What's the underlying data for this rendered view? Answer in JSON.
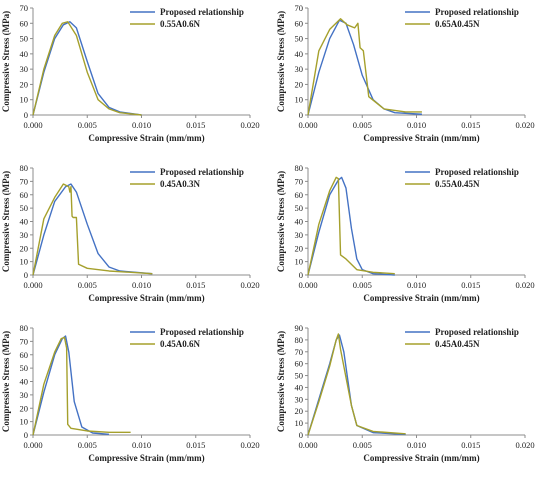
{
  "colors": {
    "proposed": "#4472C4",
    "experimental": "#A5A02C",
    "axis": "#8C8C8C",
    "text": "#222222"
  },
  "chart_data": [
    {
      "type": "line",
      "xlabel": "Compressive Strain (mm/mm)",
      "ylabel": "Compressive Stress (MPa)",
      "xlim": [
        0,
        0.02
      ],
      "ylim": [
        0,
        70
      ],
      "xticks": [
        "0.000",
        "0.005",
        "0.010",
        "0.015",
        "0.020"
      ],
      "yticks": [
        "0",
        "10",
        "20",
        "30",
        "40",
        "50",
        "60",
        "70"
      ],
      "legend_position": "top-right",
      "grid": false,
      "series": [
        {
          "name": "Proposed relationship",
          "color": "#4472C4",
          "x": [
            0,
            0.001,
            0.002,
            0.0028,
            0.0034,
            0.004,
            0.005,
            0.006,
            0.007,
            0.008,
            0.01
          ],
          "y": [
            0,
            28,
            50,
            59,
            61,
            57,
            35,
            14,
            5,
            2,
            0
          ]
        },
        {
          "name": "0.55A0.6N",
          "color": "#A5A02C",
          "x": [
            0,
            0.001,
            0.002,
            0.0027,
            0.0032,
            0.004,
            0.005,
            0.006,
            0.007,
            0.008,
            0.01
          ],
          "y": [
            0,
            30,
            52,
            60,
            61,
            52,
            28,
            10,
            4,
            1.5,
            0
          ]
        }
      ]
    },
    {
      "type": "line",
      "xlabel": "Compressive Strain (mm/mm)",
      "ylabel": "Compressive Stress (MPa)",
      "xlim": [
        0,
        0.02
      ],
      "ylim": [
        0,
        70
      ],
      "xticks": [
        "0.000",
        "0.005",
        "0.010",
        "0.015",
        "0.020"
      ],
      "yticks": [
        "0",
        "10",
        "20",
        "30",
        "40",
        "50",
        "60",
        "70"
      ],
      "legend_position": "top-right",
      "grid": false,
      "series": [
        {
          "name": "Proposed relationship",
          "color": "#4472C4",
          "x": [
            0,
            0.001,
            0.002,
            0.0029,
            0.0035,
            0.0042,
            0.005,
            0.006,
            0.007,
            0.008,
            0.0105
          ],
          "y": [
            0,
            28,
            50,
            62,
            60,
            46,
            26,
            10,
            4,
            1.5,
            0.5
          ]
        },
        {
          "name": "0.65A0.45N",
          "color": "#A5A02C",
          "x": [
            0,
            0.001,
            0.002,
            0.003,
            0.0036,
            0.0043,
            0.0046,
            0.0048,
            0.0051,
            0.0056,
            0.007,
            0.009,
            0.0105
          ],
          "y": [
            0,
            42,
            56,
            63,
            59,
            57,
            60,
            44,
            42,
            12,
            4,
            2,
            2
          ]
        }
      ]
    },
    {
      "type": "line",
      "xlabel": "Compressive Strain (mm/mm)",
      "ylabel": "Compressive Stress (MPa)",
      "xlim": [
        0,
        0.02
      ],
      "ylim": [
        0,
        80
      ],
      "xticks": [
        "0.000",
        "0.005",
        "0.010",
        "0.015",
        "0.020"
      ],
      "yticks": [
        "0",
        "10",
        "20",
        "30",
        "40",
        "50",
        "60",
        "70",
        "80"
      ],
      "legend_position": "top-right",
      "grid": false,
      "series": [
        {
          "name": "Proposed relationship",
          "color": "#4472C4",
          "x": [
            0,
            0.001,
            0.002,
            0.003,
            0.0035,
            0.004,
            0.005,
            0.006,
            0.007,
            0.008,
            0.011
          ],
          "y": [
            0,
            30,
            55,
            66,
            68,
            62,
            38,
            16,
            6,
            3,
            1
          ]
        },
        {
          "name": "0.45A0.3N",
          "color": "#A5A02C",
          "x": [
            0,
            0.001,
            0.002,
            0.0028,
            0.0033,
            0.0034,
            0.0035,
            0.0036,
            0.0037,
            0.004,
            0.0042,
            0.005,
            0.007,
            0.009,
            0.011
          ],
          "y": [
            0,
            42,
            58,
            68,
            66,
            62,
            66,
            44,
            43,
            43,
            8,
            5,
            3,
            2,
            1
          ]
        }
      ]
    },
    {
      "type": "line",
      "xlabel": "Compressive Strain (mm/mm)",
      "ylabel": "Compressive Stress (MPa)",
      "xlim": [
        0,
        0.02
      ],
      "ylim": [
        0,
        80
      ],
      "xticks": [
        "0.000",
        "0.005",
        "0.010",
        "0.015",
        "0.020"
      ],
      "yticks": [
        "0",
        "10",
        "20",
        "30",
        "40",
        "50",
        "60",
        "70",
        "80"
      ],
      "legend_position": "top-right",
      "grid": false,
      "series": [
        {
          "name": "Proposed relationship",
          "color": "#4472C4",
          "x": [
            0,
            0.001,
            0.002,
            0.0028,
            0.0031,
            0.0035,
            0.004,
            0.0045,
            0.005,
            0.006,
            0.008
          ],
          "y": [
            0,
            32,
            60,
            71,
            73,
            65,
            35,
            12,
            4,
            1,
            0
          ]
        },
        {
          "name": "0.55A0.45N",
          "color": "#A5A02C",
          "x": [
            0,
            0.001,
            0.002,
            0.0026,
            0.0028,
            0.003,
            0.0035,
            0.0045,
            0.006,
            0.008
          ],
          "y": [
            0,
            38,
            63,
            73,
            72,
            15,
            12,
            4,
            2,
            1
          ]
        }
      ]
    },
    {
      "type": "line",
      "xlabel": "Compressive Strain (mm/mm)",
      "ylabel": "Compressive Stress (MPa)",
      "xlim": [
        0,
        0.02
      ],
      "ylim": [
        0,
        80
      ],
      "xticks": [
        "0.000",
        "0.005",
        "0.010",
        "0.015",
        "0.020"
      ],
      "yticks": [
        "0",
        "10",
        "20",
        "30",
        "40",
        "50",
        "60",
        "70",
        "80"
      ],
      "legend_position": "top-right",
      "grid": false,
      "series": [
        {
          "name": "Proposed relationship",
          "color": "#4472C4",
          "x": [
            0,
            0.001,
            0.002,
            0.0027,
            0.003,
            0.0033,
            0.0038,
            0.0045,
            0.0055,
            0.007
          ],
          "y": [
            0,
            32,
            60,
            72,
            74,
            62,
            25,
            6,
            1.5,
            0.5
          ]
        },
        {
          "name": "0.45A0.6N",
          "color": "#A5A02C",
          "x": [
            0,
            0.001,
            0.002,
            0.0026,
            0.0029,
            0.0031,
            0.0032,
            0.0035,
            0.005,
            0.007,
            0.009
          ],
          "y": [
            0,
            38,
            62,
            72,
            73,
            65,
            8,
            5,
            3,
            2,
            2
          ]
        }
      ]
    },
    {
      "type": "line",
      "xlabel": "Compressive Strain (mm/mm)",
      "ylabel": "Compressive Stress (MPa)",
      "xlim": [
        0,
        0.02
      ],
      "ylim": [
        0,
        90
      ],
      "xticks": [
        "0.000",
        "0.005",
        "0.010",
        "0.015",
        "0.020"
      ],
      "yticks": [
        "0",
        "10",
        "20",
        "30",
        "40",
        "50",
        "60",
        "70",
        "80",
        "90"
      ],
      "legend_position": "top-right",
      "grid": false,
      "series": [
        {
          "name": "Proposed relationship",
          "color": "#4472C4",
          "x": [
            0,
            0.001,
            0.002,
            0.0026,
            0.0029,
            0.0033,
            0.004,
            0.0045,
            0.006,
            0.009
          ],
          "y": [
            0,
            30,
            60,
            80,
            84,
            70,
            25,
            8,
            2,
            0.5
          ]
        },
        {
          "name": "0.45A0.45N",
          "color": "#A5A02C",
          "x": [
            0,
            0.001,
            0.002,
            0.0026,
            0.0028,
            0.003,
            0.004,
            0.0045,
            0.006,
            0.009
          ],
          "y": [
            0,
            28,
            58,
            80,
            85,
            72,
            25,
            8,
            3,
            1
          ]
        }
      ]
    }
  ]
}
